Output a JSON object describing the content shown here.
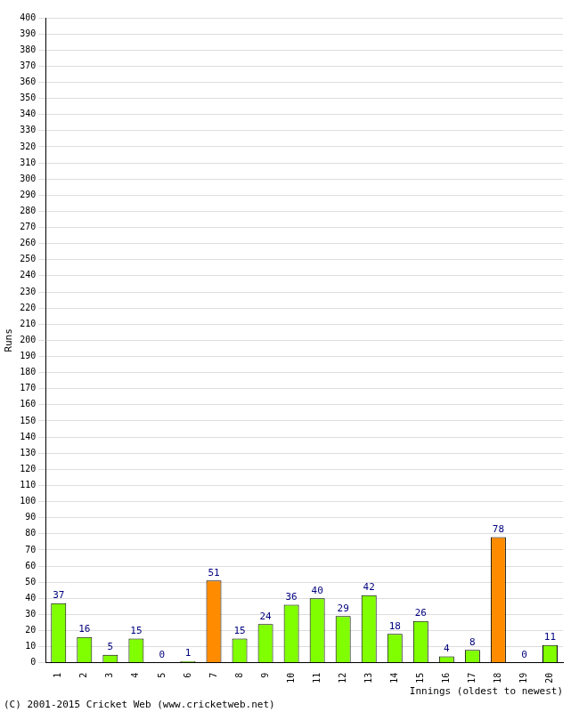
{
  "chart_data": {
    "type": "bar",
    "x_label": "Innings (oldest to newest)",
    "y_label": "Runs",
    "annotations": [
      "(C) 2001-2015 Cricket Web (www.cricketweb.net)"
    ],
    "categories": [
      "1",
      "2",
      "3",
      "4",
      "5",
      "6",
      "7",
      "8",
      "9",
      "10",
      "11",
      "12",
      "13",
      "14",
      "15",
      "16",
      "17",
      "18",
      "19",
      "20"
    ],
    "values": [
      37,
      16,
      5,
      15,
      0,
      1,
      51,
      15,
      24,
      36,
      40,
      29,
      42,
      18,
      26,
      4,
      8,
      78,
      0,
      11
    ],
    "colors": [
      "#80ff00",
      "#80ff00",
      "#80ff00",
      "#80ff00",
      "#80ff00",
      "#80ff00",
      "#ff8c00",
      "#80ff00",
      "#80ff00",
      "#80ff00",
      "#80ff00",
      "#80ff00",
      "#80ff00",
      "#80ff00",
      "#80ff00",
      "#80ff00",
      "#80ff00",
      "#ff8c00",
      "#80ff00",
      "#80ff00"
    ],
    "ylim": [
      0,
      400
    ],
    "yticks": [
      0,
      10,
      20,
      30,
      40,
      50,
      60,
      70,
      80,
      90,
      100,
      110,
      120,
      130,
      140,
      150,
      160,
      170,
      180,
      190,
      200,
      210,
      220,
      230,
      240,
      250,
      260,
      270,
      280,
      290,
      300,
      310,
      320,
      330,
      340,
      350,
      360,
      370,
      380,
      390,
      400
    ],
    "grid": true,
    "data_labels": true,
    "legend": false
  }
}
